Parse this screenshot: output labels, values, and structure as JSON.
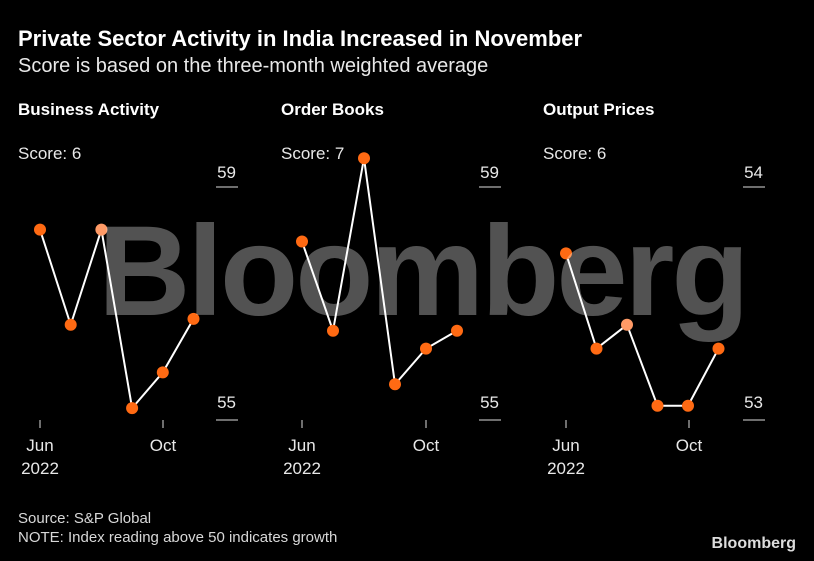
{
  "header": {
    "title": "Private Sector Activity in India Increased in November",
    "subtitle": "Score is based on the three-month weighted average"
  },
  "chart_data": [
    {
      "type": "line",
      "title": "Business Activity",
      "score_text": "Score: 6",
      "x": [
        "2022-06",
        "2022-07",
        "2022-08",
        "2022-09",
        "2022-10",
        "2022-11"
      ],
      "values": [
        58.2,
        56.6,
        58.2,
        55.2,
        55.8,
        56.7
      ],
      "ylim": [
        55,
        59
      ],
      "ytick_labels": [
        "59",
        "55"
      ],
      "xtick_labels": [
        {
          "line1": "Jun",
          "line2": "2022"
        },
        {
          "line1": "Oct",
          "line2": ""
        }
      ],
      "highlight_index": 2
    },
    {
      "type": "line",
      "title": "Order Books",
      "score_text": "Score: 7",
      "x": [
        "2022-06",
        "2022-07",
        "2022-08",
        "2022-09",
        "2022-10",
        "2022-11"
      ],
      "values": [
        58.0,
        56.5,
        59.4,
        55.6,
        56.2,
        56.5
      ],
      "ylim": [
        55,
        59
      ],
      "ytick_labels": [
        "59",
        "55"
      ],
      "xtick_labels": [
        {
          "line1": "Jun",
          "line2": "2022"
        },
        {
          "line1": "Oct",
          "line2": ""
        }
      ],
      "highlight_index": null
    },
    {
      "type": "line",
      "title": "Output Prices",
      "score_text": "Score: 6",
      "x": [
        "2022-06",
        "2022-07",
        "2022-08",
        "2022-09",
        "2022-10",
        "2022-11"
      ],
      "values": [
        53.7,
        53.3,
        53.4,
        53.06,
        53.06,
        53.3
      ],
      "ylim": [
        53,
        54
      ],
      "ytick_labels": [
        "54",
        "53"
      ],
      "xtick_labels": [
        {
          "line1": "Jun",
          "line2": "2022"
        },
        {
          "line1": "Oct",
          "line2": ""
        }
      ],
      "highlight_index": 2
    }
  ],
  "footer": {
    "source": "Source: S&P Global",
    "note": "NOTE: Index reading above 50 indicates growth",
    "brand": "Bloomberg"
  },
  "watermark": "Bloomberg",
  "colors": {
    "background": "#000000",
    "line": "#ffffff",
    "marker": "#ff6a13",
    "marker_highlight": "#ff9a66",
    "axis": "#dddddd"
  }
}
